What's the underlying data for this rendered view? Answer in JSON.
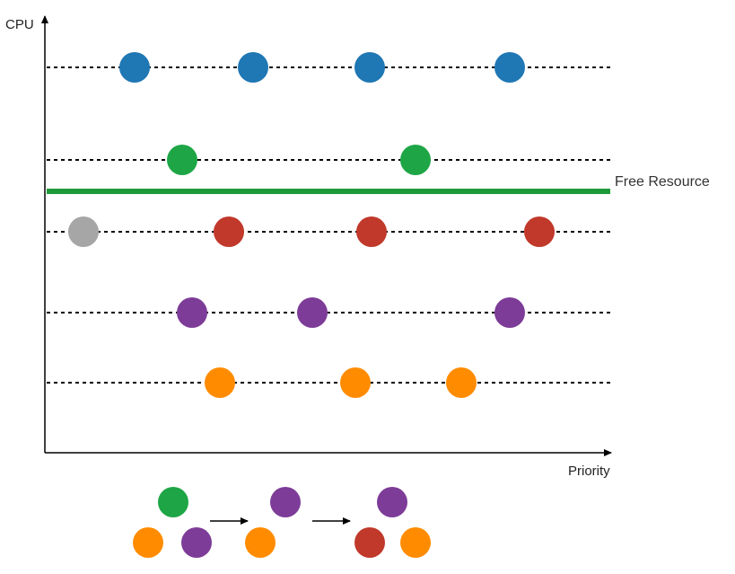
{
  "axes": {
    "y_label": "CPU",
    "x_label": "Priority"
  },
  "threshold": {
    "label": "Free Resource",
    "color": "#1f9a3a"
  },
  "colors": {
    "blue": "#1f77b4",
    "green": "#1ea646",
    "red": "#c0392b",
    "gray": "#a6a6a6",
    "purple": "#7d3c98",
    "orange": "#ff8c00"
  },
  "rows": [
    {
      "name": "row-blue",
      "nodes": [
        {
          "color": "blue"
        },
        {
          "color": "blue"
        },
        {
          "color": "blue"
        },
        {
          "color": "blue"
        }
      ]
    },
    {
      "name": "row-green",
      "nodes": [
        {
          "color": "green"
        },
        {
          "color": "green"
        }
      ]
    },
    {
      "name": "row-red",
      "nodes": [
        {
          "color": "gray"
        },
        {
          "color": "red"
        },
        {
          "color": "red"
        },
        {
          "color": "red"
        }
      ]
    },
    {
      "name": "row-purple",
      "nodes": [
        {
          "color": "purple"
        },
        {
          "color": "purple"
        },
        {
          "color": "purple"
        }
      ]
    },
    {
      "name": "row-orange",
      "nodes": [
        {
          "color": "orange"
        },
        {
          "color": "orange"
        },
        {
          "color": "orange"
        }
      ]
    }
  ],
  "sequence": [
    {
      "top": "green",
      "bottom": [
        "orange",
        "purple"
      ]
    },
    {
      "top": "purple",
      "bottom": [
        "orange"
      ]
    },
    {
      "top": "purple",
      "bottom": [
        "red",
        "orange"
      ]
    }
  ]
}
